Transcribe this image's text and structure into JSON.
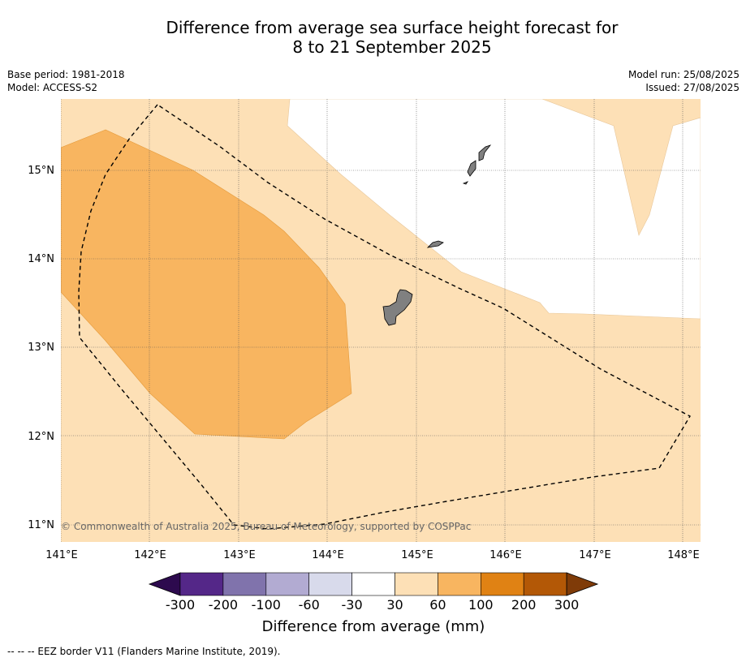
{
  "title_line1": "Difference from average sea surface height forecast for",
  "title_line2": "8 to 21 September 2025",
  "base_period": "Base period: 1981-2018",
  "model": "Model: ACCESS-S2",
  "model_run": "Model run: 25/08/2025",
  "issued": "Issued: 27/08/2025",
  "copyright": "© Commonwealth of Australia 2025, Bureau of Meteorology, supported by COSPPac",
  "x_ticks": [
    "141°E",
    "142°E",
    "143°E",
    "144°E",
    "145°E",
    "146°E",
    "147°E",
    "148°E"
  ],
  "y_ticks": [
    "11°N",
    "12°N",
    "13°N",
    "14°N",
    "15°N"
  ],
  "colorbar": {
    "label": "Difference from average (mm)",
    "ticks": [
      "-300",
      "-200",
      "-100",
      "-60",
      "-30",
      "30",
      "60",
      "100",
      "200",
      "300"
    ],
    "colors": [
      "#2d0a4e",
      "#542788",
      "#8073ac",
      "#b2abd2",
      "#d8daeb",
      "#ffffff",
      "#fde0b6",
      "#f8b560",
      "#e08214",
      "#b35806",
      "#7f3b08"
    ]
  },
  "footnote": "--  --  -- EEZ border V11 (Flanders Marine Institute, 2019).",
  "chart_data": {
    "type": "map",
    "lon_range": [
      141,
      148.2
    ],
    "lat_range": [
      10.8,
      15.8
    ],
    "gridlines": true,
    "regions": [
      {
        "category": "30 to 60 mm",
        "color": "#fde0b6"
      },
      {
        "category": "60 to 100 mm",
        "color": "#f8b560"
      },
      {
        "category": "-30 to 30 mm",
        "color": "#ffffff"
      }
    ],
    "land_color": "#808080",
    "eez_border": "dashed"
  }
}
